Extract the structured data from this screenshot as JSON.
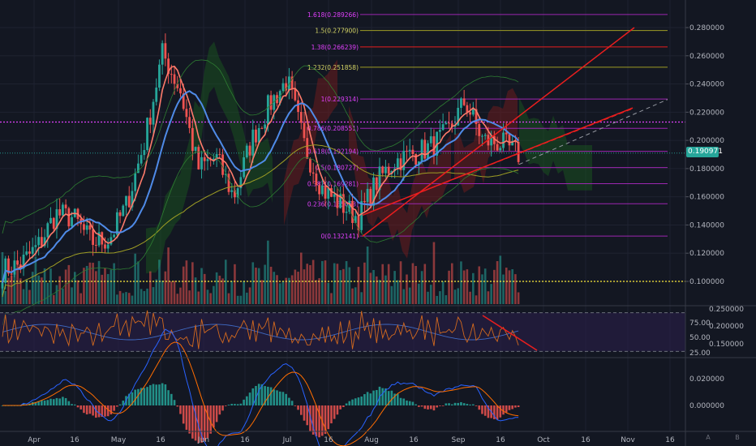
{
  "chart_data": [
    {
      "type": "candlestick",
      "series": [
        {
          "name": "price",
          "values": [
            0.108,
            0.112,
            0.125,
            0.148,
            0.145,
            0.128,
            0.13,
            0.155,
            0.2,
            0.262,
            0.235,
            0.18,
            0.188,
            0.16,
            0.2,
            0.225,
            0.243,
            0.195,
            0.165,
            0.155,
            0.145,
            0.17,
            0.185,
            0.19,
            0.195,
            0.205,
            0.228,
            0.2,
            0.198,
            0.19
          ]
        }
      ],
      "y_ticks": [
        "0.280000",
        "0.260000",
        "0.240000",
        "0.220000",
        "0.200000",
        "0.180000",
        "0.160000",
        "0.140000",
        "0.120000",
        "0.100000"
      ],
      "ylim": [
        0.087,
        0.3
      ],
      "x_ticks": [
        "Apr",
        "16",
        "May",
        "16",
        "Jun",
        "16",
        "Jul",
        "16",
        "Aug",
        "16",
        "Sep",
        "16",
        "Oct",
        "16",
        "Nov",
        "16"
      ],
      "fib_levels": [
        {
          "label": "1.618(0.289266)",
          "value": 0.289266
        },
        {
          "label": "1.5(0.277900)",
          "value": 0.2779
        },
        {
          "label": "1.38(0.266239)",
          "value": 0.266239
        },
        {
          "label": "1.232(0.251858)",
          "value": 0.251858
        },
        {
          "label": "1(0.229314)",
          "value": 0.229314
        },
        {
          "label": "0.786(0.208551)",
          "value": 0.208551
        },
        {
          "label": "0.618(0.192194)",
          "value": 0.192194
        },
        {
          "label": "0.5(0.180727)",
          "value": 0.180727
        },
        {
          "label": "0.382(0.169281)",
          "value": 0.169281
        },
        {
          "label": "0.236(0.155053)",
          "value": 0.155053
        },
        {
          "label": "0(0.132141)",
          "value": 0.132141
        }
      ],
      "horizontal_lines": [
        {
          "value": 0.213,
          "style": "dotted",
          "color": "#e040fb"
        },
        {
          "value": 0.1,
          "style": "dotted",
          "color": "#ffeb3b"
        }
      ],
      "last_price": "0.190971",
      "grid": true
    },
    {
      "type": "line",
      "name": "RSI",
      "y_ticks": [
        "75.00",
        "50.00",
        "25.00"
      ],
      "y_ticks_right": [
        "0.250000",
        "0.200000",
        "0.150000"
      ],
      "bands": [
        75,
        25
      ]
    },
    {
      "type": "bar",
      "name": "MACD",
      "y_ticks": [
        "0.020000",
        "0.000000"
      ]
    }
  ],
  "colors": {
    "background": "#131722",
    "up": "#26a69a",
    "down": "#ef5350",
    "fib": "#9c27b0",
    "fib_alt": "#9e9d24",
    "trend": "#e91e1e",
    "tenkan": "#ff7b6b",
    "kijun": "#4f8be8",
    "magenta_line": "#e040fb",
    "yellow_line": "#ffeb3b"
  },
  "scale_buttons": [
    "A",
    "B"
  ]
}
